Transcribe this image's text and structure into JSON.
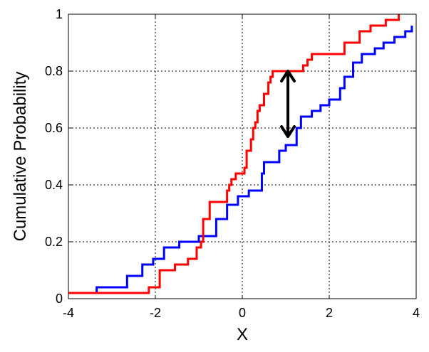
{
  "chart_data": {
    "type": "line",
    "title": "",
    "xlabel": "X",
    "ylabel": "Cumulative Probability",
    "xlim": [
      -4,
      4
    ],
    "ylim": [
      0,
      1
    ],
    "x_ticks": [
      -4,
      -2,
      0,
      2,
      4
    ],
    "y_ticks": [
      0,
      0.2,
      0.4,
      0.6,
      0.8,
      1
    ],
    "x_tick_labels": [
      "-4",
      "-2",
      "0",
      "2",
      "4"
    ],
    "y_tick_labels": [
      "0",
      "0.2",
      "0.4",
      "0.6",
      "0.8",
      "1"
    ],
    "grid": true,
    "grid_style": "dotted",
    "series": [
      {
        "color": "#0000ff",
        "step": "post",
        "x": [
          -4,
          -3.35,
          -2.65,
          -2.3,
          -2.05,
          -1.8,
          -1.45,
          -1.0,
          -0.6,
          -0.35,
          -0.1,
          0.15,
          0.45,
          0.5,
          0.85,
          1.0,
          1.25,
          1.35,
          1.6,
          1.8,
          2.0,
          2.25,
          2.35,
          2.55,
          2.75,
          3.05,
          3.25,
          3.5,
          3.75,
          3.9
        ],
        "y": [
          0.02,
          0.04,
          0.08,
          0.12,
          0.14,
          0.18,
          0.2,
          0.22,
          0.28,
          0.33,
          0.36,
          0.38,
          0.44,
          0.48,
          0.52,
          0.54,
          0.6,
          0.64,
          0.66,
          0.68,
          0.7,
          0.74,
          0.78,
          0.83,
          0.86,
          0.88,
          0.9,
          0.92,
          0.94,
          0.96
        ]
      },
      {
        "color": "#ff0000",
        "step": "post",
        "x": [
          -4,
          -2.2,
          -2.15,
          -1.9,
          -1.55,
          -1.25,
          -1.05,
          -0.95,
          -0.9,
          -0.75,
          -0.55,
          -0.35,
          -0.3,
          -0.25,
          -0.15,
          -0.05,
          0.05,
          0.1,
          0.2,
          0.25,
          0.3,
          0.35,
          0.4,
          0.5,
          0.6,
          0.65,
          0.7,
          0.8,
          0.9,
          1.0,
          1.1,
          1.3,
          1.4,
          1.5,
          1.6,
          2.35,
          2.7,
          2.95,
          3.3,
          3.6
        ],
        "y": [
          0.02,
          0.02,
          0.04,
          0.1,
          0.12,
          0.14,
          0.18,
          0.2,
          0.28,
          0.34,
          0.34,
          0.38,
          0.4,
          0.42,
          0.44,
          0.44,
          0.46,
          0.52,
          0.56,
          0.6,
          0.62,
          0.66,
          0.68,
          0.72,
          0.76,
          0.78,
          0.8,
          0.8,
          0.8,
          0.8,
          0.8,
          0.8,
          0.82,
          0.84,
          0.86,
          0.9,
          0.94,
          0.96,
          0.98,
          1.0
        ]
      }
    ],
    "annotations": [
      {
        "type": "double-arrow",
        "x": 1.05,
        "y_from": 0.57,
        "y_to": 0.8,
        "color": "#000000"
      }
    ]
  }
}
